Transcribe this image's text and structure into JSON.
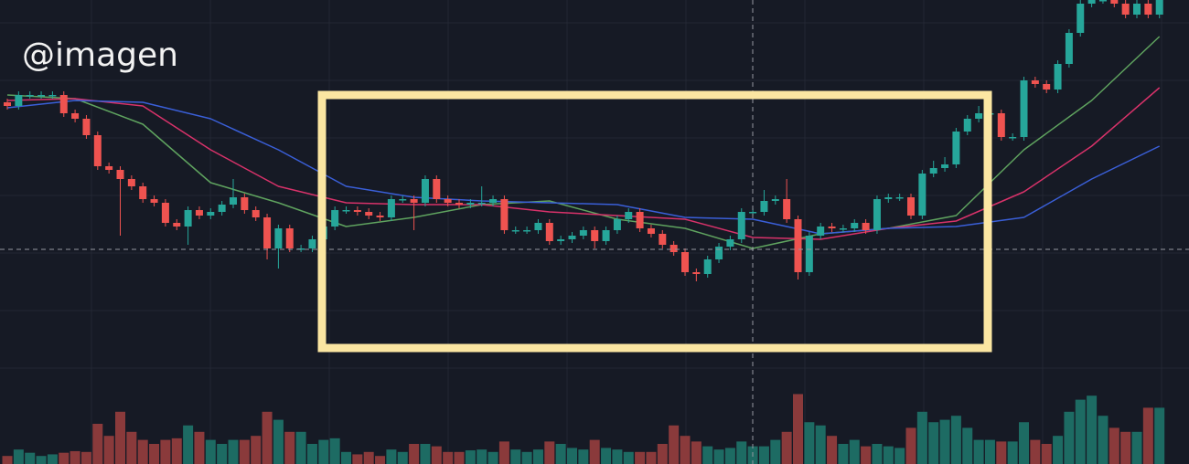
{
  "watermark": "@imagen",
  "chart_data": {
    "type": "candlestick",
    "ylim": [
      0,
      100
    ],
    "volume_ylim": [
      0,
      100
    ],
    "up_color": "#26a69a",
    "down_color": "#ef5350",
    "volume_up_color": "#1d6b63",
    "volume_down_color": "#8a3a3b",
    "open": [
      72,
      71,
      74,
      74,
      74,
      74,
      69,
      67.5,
      63,
      54.5,
      53.5,
      51,
      49,
      45.5,
      44.5,
      39,
      38,
      42.5,
      41,
      42,
      44,
      46,
      42.5,
      40.5,
      32,
      37.5,
      32,
      32,
      34.5,
      38,
      42.5,
      42.5,
      42,
      41,
      40.5,
      45.5,
      45.5,
      44.5,
      51,
      45.5,
      44.5,
      44,
      44.5,
      44.5,
      45.5,
      37,
      37,
      37,
      39,
      34,
      34.5,
      35.5,
      37,
      34,
      37,
      40,
      42,
      37.5,
      36,
      33,
      31,
      25.5,
      25,
      29,
      32.5,
      34.5,
      42,
      42,
      45,
      45.5,
      40,
      25.5,
      35.5,
      38,
      37.5,
      37.5,
      39,
      37,
      45.5,
      46,
      46,
      41,
      52.5,
      54,
      55,
      64,
      67.5,
      69,
      69,
      62.5,
      62.5,
      78,
      77,
      75.5,
      82.5,
      91,
      99,
      100,
      100,
      99,
      96,
      99,
      96
    ],
    "high": [
      73,
      75,
      75,
      75,
      75,
      75,
      70,
      68.5,
      64,
      55.5,
      54.5,
      52,
      50,
      46.5,
      45.5,
      40,
      43.5,
      43.5,
      43,
      45,
      51,
      47,
      43.5,
      41.5,
      38.5,
      38.5,
      33,
      35.5,
      39,
      43.5,
      43.5,
      43.5,
      43,
      42,
      46.5,
      46.5,
      46.5,
      52,
      52,
      46.5,
      45.5,
      45.5,
      49,
      46.5,
      46.5,
      38,
      38,
      40,
      40,
      35.5,
      36.5,
      38,
      38,
      38,
      41,
      43,
      43,
      38.5,
      37,
      34,
      32,
      26.5,
      30,
      33.5,
      35.5,
      43,
      43,
      48,
      46.5,
      51,
      41,
      36.5,
      39,
      39,
      38.5,
      40,
      40,
      46.5,
      47,
      47,
      47,
      53.5,
      56,
      57,
      65,
      68.5,
      71,
      70,
      70,
      63.5,
      79,
      79,
      78,
      83.5,
      92,
      100,
      101,
      101,
      101,
      100,
      100,
      100,
      103
    ],
    "low": [
      70,
      70,
      73,
      73,
      73,
      68,
      66.5,
      62,
      53.5,
      52.5,
      35.5,
      48,
      44.5,
      43.5,
      38,
      37,
      33,
      40,
      40,
      41,
      43,
      41.5,
      39.5,
      29,
      26.5,
      31,
      31,
      31,
      33.5,
      37,
      41.5,
      41,
      40,
      39.5,
      39.5,
      44.5,
      37,
      43.5,
      44.5,
      43.5,
      43,
      43,
      43.5,
      43.5,
      36,
      36,
      36,
      36,
      33,
      33,
      33.5,
      34.5,
      32,
      33,
      36,
      39,
      36.5,
      35,
      32,
      30,
      24.5,
      23,
      24,
      28,
      31.5,
      33.5,
      41,
      41,
      44,
      39,
      23.5,
      24.5,
      34.5,
      36.5,
      36.5,
      36.5,
      36,
      36,
      44.5,
      45,
      40,
      40,
      51.5,
      53,
      54,
      63,
      66.5,
      68,
      61.5,
      61.5,
      61.5,
      76,
      74.5,
      74.5,
      81.5,
      90,
      98,
      99,
      98,
      95,
      95,
      95,
      95
    ],
    "close": [
      71,
      74,
      74,
      74,
      74,
      69,
      67.5,
      63,
      54.5,
      53.5,
      51,
      49,
      45.5,
      44.5,
      39,
      38,
      42.5,
      41,
      42,
      44,
      46,
      42.5,
      40.5,
      32,
      37.5,
      32,
      32,
      34.5,
      38,
      42.5,
      42.5,
      42,
      41,
      40.5,
      45.5,
      45.5,
      44.5,
      51,
      45.5,
      44.5,
      44,
      44.5,
      44.5,
      45.5,
      37,
      37,
      37,
      39,
      34,
      34.5,
      35.5,
      37,
      34,
      37,
      40,
      42,
      37.5,
      36,
      33,
      31,
      25.5,
      25,
      29,
      32.5,
      34.5,
      42,
      42,
      45,
      45.5,
      40,
      25.5,
      35.5,
      38,
      37.5,
      37.5,
      39,
      37,
      45.5,
      46,
      46,
      41,
      52.5,
      54,
      55,
      64,
      67.5,
      69,
      69,
      62.5,
      62.5,
      78,
      77,
      75.5,
      82.5,
      91,
      99,
      100,
      100,
      99,
      96,
      99,
      96,
      102
    ],
    "volume": [
      10,
      18,
      14,
      10,
      12,
      14,
      16,
      15,
      50,
      35,
      65,
      40,
      30,
      25,
      30,
      32,
      48,
      40,
      30,
      25,
      30,
      30,
      35,
      65,
      55,
      40,
      40,
      25,
      30,
      32,
      15,
      12,
      15,
      10,
      18,
      15,
      25,
      25,
      22,
      15,
      15,
      17,
      18,
      15,
      28,
      18,
      15,
      18,
      28,
      25,
      20,
      18,
      30,
      20,
      18,
      15,
      15,
      15,
      25,
      48,
      35,
      28,
      22,
      18,
      20,
      28,
      22,
      22,
      30,
      40,
      87,
      52,
      48,
      35,
      25,
      30,
      22,
      25,
      22,
      20,
      45,
      65,
      52,
      55,
      60,
      45,
      30,
      30,
      28,
      28,
      52,
      30,
      25,
      35,
      65,
      80,
      85,
      60,
      45,
      40,
      40,
      70,
      70
    ],
    "series": [
      {
        "color": "#5fa35f",
        "x": [
          0,
          6,
          12,
          18,
          24,
          30,
          36,
          42,
          48,
          54,
          60,
          66,
          72,
          78,
          84,
          90,
          96,
          102
        ],
        "values": [
          74,
          73,
          66,
          50,
          44.5,
          38,
          40.5,
          44,
          45,
          40,
          37.5,
          32,
          36,
          37.5,
          41,
          59,
          72.5,
          90
        ]
      },
      {
        "color": "#d8326a",
        "x": [
          0,
          6,
          12,
          18,
          24,
          30,
          36,
          42,
          48,
          54,
          60,
          66,
          72,
          78,
          84,
          90,
          96,
          102
        ],
        "values": [
          72.5,
          73,
          71,
          59,
          49,
          44.5,
          44,
          44,
          42,
          41,
          40,
          35,
          34.5,
          37.5,
          39.5,
          47.5,
          60,
          76
        ]
      },
      {
        "color": "#3a5fd8",
        "x": [
          0,
          6,
          12,
          18,
          24,
          30,
          36,
          42,
          48,
          54,
          60,
          66,
          72,
          78,
          84,
          90,
          96,
          102
        ],
        "values": [
          70.5,
          72.5,
          72,
          67.5,
          59,
          49,
          46,
          45,
          44.5,
          44,
          40.5,
          40,
          36,
          37.5,
          38,
          40.5,
          51,
          60
        ]
      }
    ]
  }
}
